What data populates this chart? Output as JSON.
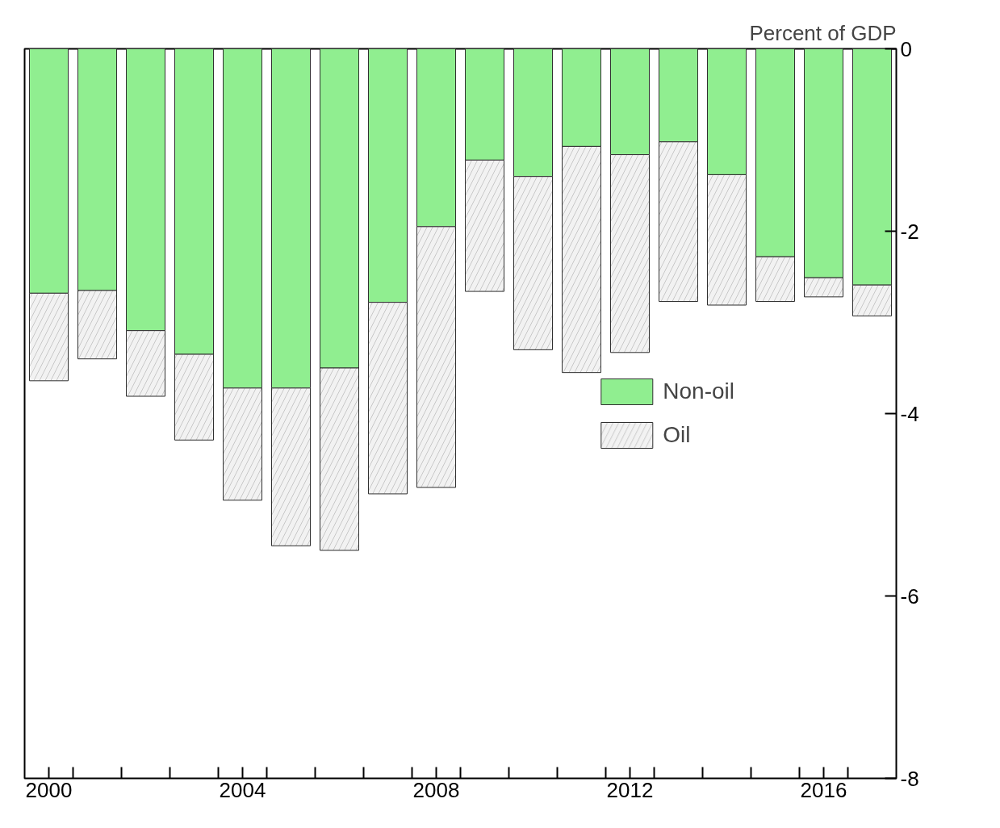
{
  "chart_data": {
    "type": "bar",
    "stacked": true,
    "ylabel": "Percent of GDP",
    "x": [
      2000,
      2001,
      2002,
      2003,
      2004,
      2005,
      2006,
      2007,
      2008,
      2009,
      2010,
      2011,
      2012,
      2013,
      2014,
      2015,
      2016,
      2017
    ],
    "series": [
      {
        "name": "Non-oil",
        "color": "#90ee90",
        "values": [
          -2.68,
          -2.65,
          -3.09,
          -3.35,
          -3.72,
          -3.72,
          -3.5,
          -2.78,
          -1.95,
          -1.22,
          -1.4,
          -1.07,
          -1.16,
          -1.02,
          -1.38,
          -2.28,
          -2.51,
          -2.59
        ]
      },
      {
        "name": "Oil",
        "color": "#f2f2f2",
        "values": [
          -0.96,
          -0.75,
          -0.72,
          -0.94,
          -1.23,
          -1.73,
          -2.0,
          -2.1,
          -2.86,
          -1.44,
          -1.9,
          -2.48,
          -2.17,
          -1.75,
          -1.43,
          -0.49,
          -0.21,
          -0.34
        ]
      }
    ],
    "xlim": [
      1999.5,
      2017.5
    ],
    "xticks": [
      2000,
      2004,
      2008,
      2012,
      2016,
      {
        "value": 2000.5,
        "label": null
      },
      {
        "value": 2001.5,
        "label": null
      },
      {
        "value": 2002.5,
        "label": null
      },
      {
        "value": 2003.5,
        "label": null
      },
      {
        "value": 2004.5,
        "label": null
      },
      {
        "value": 2005.5,
        "label": null
      },
      {
        "value": 2006.5,
        "label": null
      },
      {
        "value": 2007.5,
        "label": null
      },
      {
        "value": 2008.5,
        "label": null
      },
      {
        "value": 2009.5,
        "label": null
      },
      {
        "value": 2010.5,
        "label": null
      },
      {
        "value": 2011.5,
        "label": null
      },
      {
        "value": 2012.5,
        "label": null
      },
      {
        "value": 2013.5,
        "label": null
      },
      {
        "value": 2014.5,
        "label": null
      },
      {
        "value": 2015.5,
        "label": null
      },
      {
        "value": 2016.5,
        "label": null
      }
    ],
    "ylim": [
      -8,
      0
    ],
    "yticks": [
      0,
      -2,
      -4,
      -6,
      -8
    ],
    "legend": "right",
    "grid": false
  }
}
